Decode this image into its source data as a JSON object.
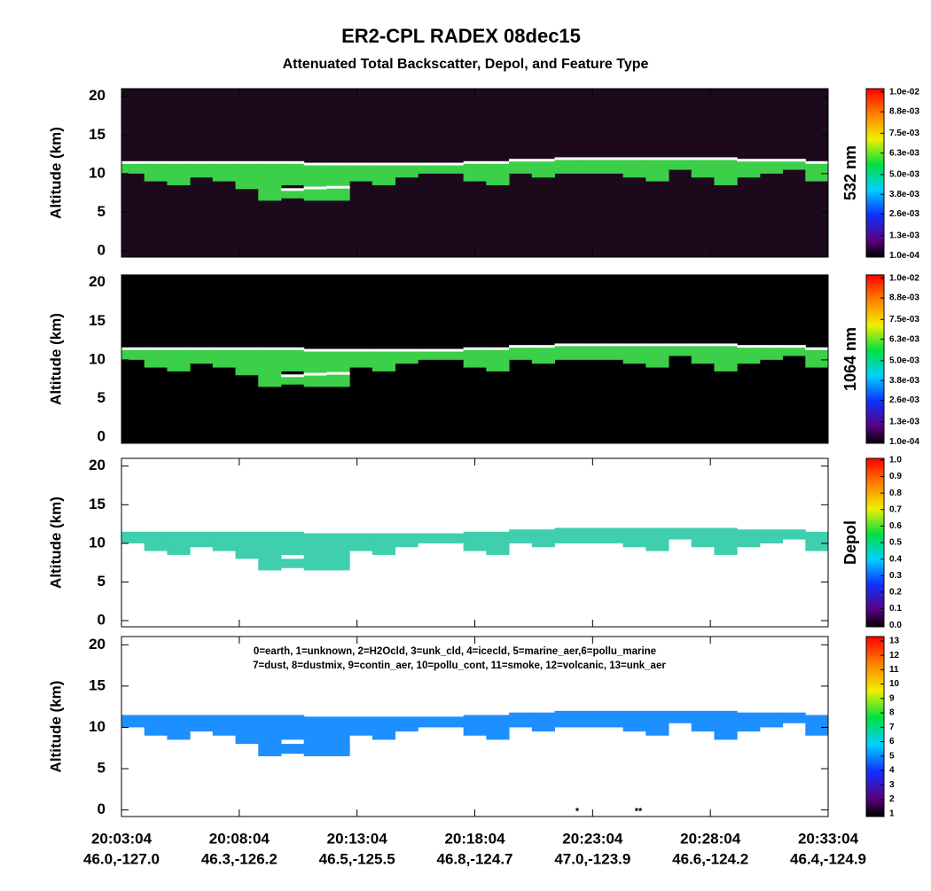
{
  "title": "ER2-CPL RADEX 08dec15",
  "subtitle": "Attenuated Total Backscatter, Depol, and Feature Type",
  "x_tick_labels": {
    "time": [
      "20:03:04",
      "20:08:04",
      "20:13:04",
      "20:18:04",
      "20:23:04",
      "20:28:04",
      "20:33:04"
    ],
    "position": [
      "46.0,-127.0",
      "46.3,-126.2",
      "46.5,-125.5",
      "46.8,-124.7",
      "47.0,-123.9",
      "46.6,-124.2",
      "46.4,-124.9"
    ]
  },
  "x": [
    "20:03:04",
    "20:04:04",
    "20:05:04",
    "20:06:04",
    "20:07:04",
    "20:08:04",
    "20:09:04",
    "20:10:04",
    "20:11:04",
    "20:12:04",
    "20:13:04",
    "20:14:04",
    "20:15:04",
    "20:16:04",
    "20:17:04",
    "20:18:04",
    "20:19:04",
    "20:20:04",
    "20:21:04",
    "20:22:04",
    "20:23:04",
    "20:24:04",
    "20:25:04",
    "20:26:04",
    "20:27:04",
    "20:28:04",
    "20:29:04",
    "20:30:04",
    "20:31:04",
    "20:32:04",
    "20:33:04"
  ],
  "chart_data": [
    {
      "type": "curtain",
      "y_label": "Altitude (km)",
      "ylim": [
        -0.8,
        21
      ],
      "yticks": [
        0,
        5,
        10,
        15,
        20
      ],
      "background": "#1c0a1c",
      "color": "#3ccf4a",
      "layers": [
        {
          "top": [
            11.5,
            11.5,
            11.5,
            11.5,
            11.5,
            11.5,
            11.5,
            11.5,
            11.3,
            11.3,
            11.3,
            11.3,
            11.3,
            11.3,
            11.3,
            11.5,
            11.5,
            11.8,
            11.8,
            12,
            12,
            12,
            12,
            12,
            12,
            12,
            12,
            11.8,
            11.8,
            11.8,
            11.5
          ],
          "base": [
            10,
            9,
            8.5,
            9.5,
            9,
            8,
            6.5,
            8.5,
            8,
            7,
            9,
            8.5,
            9.5,
            10,
            10,
            9,
            8.5,
            10,
            9.5,
            10,
            10,
            10,
            9.5,
            9,
            10.5,
            9.5,
            8.5,
            9.5,
            10,
            10.5,
            9
          ]
        },
        {
          "top": [
            null,
            null,
            null,
            null,
            null,
            null,
            null,
            8,
            8.2,
            8.3,
            null,
            null,
            null,
            null,
            null,
            null,
            null,
            null,
            null,
            null,
            null,
            null,
            null,
            null,
            null,
            null,
            null,
            null,
            null,
            null,
            null
          ],
          "base": [
            null,
            null,
            null,
            null,
            null,
            null,
            null,
            6.8,
            6.5,
            6.5,
            null,
            null,
            null,
            null,
            null,
            null,
            null,
            null,
            null,
            null,
            null,
            null,
            null,
            null,
            null,
            null,
            null,
            null,
            null,
            null,
            null
          ]
        }
      ],
      "colorbar": {
        "label": "532 nm",
        "lim": [
          0,
          0.0102
        ],
        "ticks": [
          {
            "value": 0.0001,
            "label": "1.0e-04"
          },
          {
            "value": 0.0013,
            "label": "1.3e-03"
          },
          {
            "value": 0.0026,
            "label": "2.6e-03"
          },
          {
            "value": 0.0038,
            "label": "3.8e-03"
          },
          {
            "value": 0.005,
            "label": "5.0e-03"
          },
          {
            "value": 0.0063,
            "label": "6.3e-03"
          },
          {
            "value": 0.0075,
            "label": "7.5e-03"
          },
          {
            "value": 0.0088,
            "label": "8.8e-03"
          },
          {
            "value": 0.01,
            "label": "1.0e-02"
          }
        ]
      }
    },
    {
      "type": "curtain",
      "y_label": "Altitude (km)",
      "ylim": [
        -0.8,
        21
      ],
      "yticks": [
        0,
        5,
        10,
        15,
        20
      ],
      "background": "#000000",
      "color": "#3ccf4a",
      "layers": [
        {
          "top": [
            11.5,
            11.5,
            11.5,
            11.5,
            11.5,
            11.5,
            11.5,
            11.5,
            11.3,
            11.3,
            11.3,
            11.3,
            11.3,
            11.3,
            11.3,
            11.5,
            11.5,
            11.8,
            11.8,
            12,
            12,
            12,
            12,
            12,
            12,
            12,
            12,
            11.8,
            11.8,
            11.8,
            11.5
          ],
          "base": [
            10,
            9,
            8.5,
            9.5,
            9,
            8,
            6.5,
            8.5,
            8,
            7,
            9,
            8.5,
            9.5,
            10,
            10,
            9,
            8.5,
            10,
            9.5,
            10,
            10,
            10,
            9.5,
            9,
            10.5,
            9.5,
            8.5,
            9.5,
            10,
            10.5,
            9
          ]
        },
        {
          "top": [
            null,
            null,
            null,
            null,
            null,
            null,
            null,
            8,
            8.2,
            8.3,
            null,
            null,
            null,
            null,
            null,
            null,
            null,
            null,
            null,
            null,
            null,
            null,
            null,
            null,
            null,
            null,
            null,
            null,
            null,
            null,
            null
          ],
          "base": [
            null,
            null,
            null,
            null,
            null,
            null,
            null,
            6.8,
            6.5,
            6.5,
            null,
            null,
            null,
            null,
            null,
            null,
            null,
            null,
            null,
            null,
            null,
            null,
            null,
            null,
            null,
            null,
            null,
            null,
            null,
            null,
            null
          ]
        }
      ],
      "colorbar": {
        "label": "1064 nm",
        "lim": [
          0,
          0.0102
        ],
        "ticks": [
          {
            "value": 0.0001,
            "label": "1.0e-04"
          },
          {
            "value": 0.0013,
            "label": "1.3e-03"
          },
          {
            "value": 0.0026,
            "label": "2.6e-03"
          },
          {
            "value": 0.0038,
            "label": "3.8e-03"
          },
          {
            "value": 0.005,
            "label": "5.0e-03"
          },
          {
            "value": 0.0063,
            "label": "6.3e-03"
          },
          {
            "value": 0.0075,
            "label": "7.5e-03"
          },
          {
            "value": 0.0088,
            "label": "8.8e-03"
          },
          {
            "value": 0.01,
            "label": "1.0e-02"
          }
        ]
      }
    },
    {
      "type": "curtain",
      "y_label": "Altitude (km)",
      "ylim": [
        -0.8,
        21
      ],
      "yticks": [
        0,
        5,
        10,
        15,
        20
      ],
      "background": "#ffffff",
      "color": "#3fcfae",
      "layers": [
        {
          "top": [
            11.5,
            11.5,
            11.5,
            11.5,
            11.5,
            11.5,
            11.5,
            11.5,
            11.3,
            11.3,
            11.3,
            11.3,
            11.3,
            11.3,
            11.3,
            11.5,
            11.5,
            11.8,
            11.8,
            12,
            12,
            12,
            12,
            12,
            12,
            12,
            12,
            11.8,
            11.8,
            11.8,
            11.5
          ],
          "base": [
            10,
            9,
            8.5,
            9.5,
            9,
            8,
            6.5,
            8.5,
            8,
            7,
            9,
            8.5,
            9.5,
            10,
            10,
            9,
            8.5,
            10,
            9.5,
            10,
            10,
            10,
            9.5,
            9,
            10.5,
            9.5,
            8.5,
            9.5,
            10,
            10.5,
            9
          ]
        },
        {
          "top": [
            null,
            null,
            null,
            null,
            null,
            null,
            null,
            8,
            8.2,
            8.3,
            null,
            null,
            null,
            null,
            null,
            null,
            null,
            null,
            null,
            null,
            null,
            null,
            null,
            null,
            null,
            null,
            null,
            null,
            null,
            null,
            null
          ],
          "base": [
            null,
            null,
            null,
            null,
            null,
            null,
            null,
            6.8,
            6.5,
            6.5,
            null,
            null,
            null,
            null,
            null,
            null,
            null,
            null,
            null,
            null,
            null,
            null,
            null,
            null,
            null,
            null,
            null,
            null,
            null,
            null,
            null
          ]
        }
      ],
      "colorbar": {
        "label": "Depol",
        "lim": [
          -0.01,
          1.01
        ],
        "ticks": [
          {
            "value": 0,
            "label": "0.0"
          },
          0.1,
          0.2,
          0.3,
          0.4,
          0.5,
          0.6,
          0.7,
          0.8,
          0.9,
          {
            "value": 1,
            "label": "1.0"
          }
        ]
      }
    },
    {
      "type": "curtain",
      "y_label": "Altitude (km)",
      "ylim": [
        -0.8,
        21
      ],
      "yticks": [
        0,
        5,
        10,
        15,
        20
      ],
      "background": "#ffffff",
      "color": "#1e8fff",
      "annotation": [
        "0=earth, 1=unknown, 2=H2Ocld, 3=unk_cld, 4=icecld, 5=marine_aer,6=pollu_marine",
        "7=dust, 8=dustmix, 9=contin_aer, 10=pollu_cont, 11=smoke, 12=volcanic, 13=unk_aer"
      ],
      "markers": [
        "*",
        "**"
      ],
      "layers": [
        {
          "top": [
            11.5,
            11.5,
            11.5,
            11.5,
            11.5,
            11.5,
            11.5,
            11.5,
            11.3,
            11.3,
            11.3,
            11.3,
            11.3,
            11.3,
            11.3,
            11.5,
            11.5,
            11.8,
            11.8,
            12,
            12,
            12,
            12,
            12,
            12,
            12,
            12,
            11.8,
            11.8,
            11.8,
            11.5
          ],
          "base": [
            10,
            9,
            8.5,
            9.5,
            9,
            8,
            6.5,
            8.5,
            8,
            7,
            9,
            8.5,
            9.5,
            10,
            10,
            9,
            8.5,
            10,
            9.5,
            10,
            10,
            10,
            9.5,
            9,
            10.5,
            9.5,
            8.5,
            9.5,
            10,
            10.5,
            9
          ]
        },
        {
          "top": [
            null,
            null,
            null,
            null,
            null,
            null,
            null,
            8,
            8.2,
            8.3,
            null,
            null,
            null,
            null,
            null,
            null,
            null,
            null,
            null,
            null,
            null,
            null,
            null,
            null,
            null,
            null,
            null,
            null,
            null,
            null,
            null
          ],
          "base": [
            null,
            null,
            null,
            null,
            null,
            null,
            null,
            6.8,
            6.5,
            6.5,
            null,
            null,
            null,
            null,
            null,
            null,
            null,
            null,
            null,
            null,
            null,
            null,
            null,
            null,
            null,
            null,
            null,
            null,
            null,
            null,
            null
          ]
        }
      ],
      "colorbar": {
        "lim": [
          0.8,
          13.3
        ],
        "ticks": [
          1,
          2,
          3,
          4,
          5,
          6,
          7,
          8,
          9,
          10,
          11,
          12,
          13
        ]
      }
    }
  ]
}
